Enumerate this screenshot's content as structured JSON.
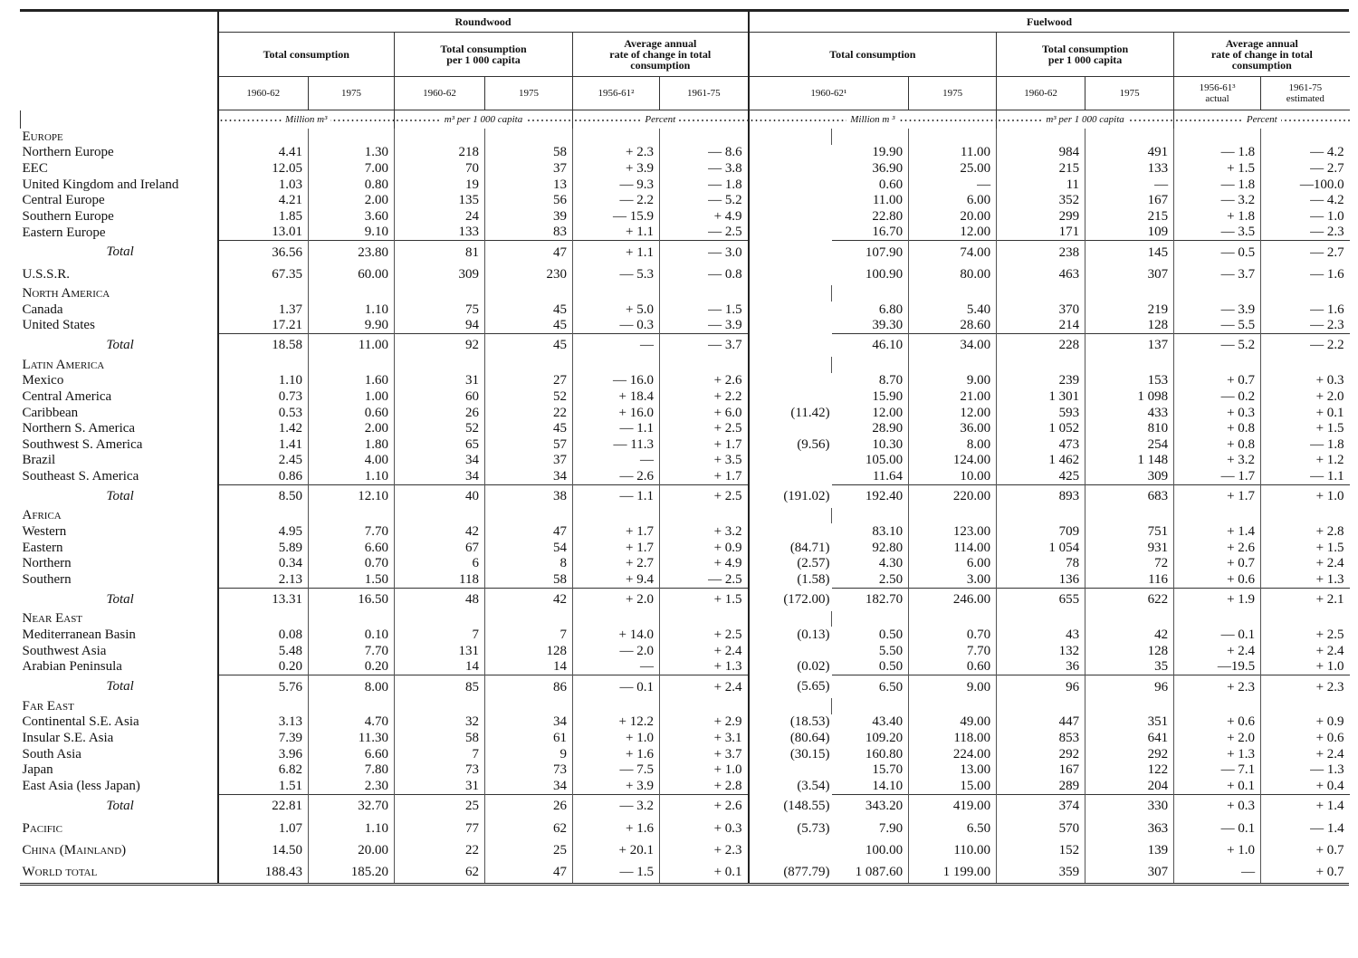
{
  "header": {
    "groups": [
      "Roundwood",
      "Fuelwood"
    ],
    "subgroups": [
      [
        "Total consumption"
      ],
      [
        "Total consumption",
        "per 1 000 capita"
      ],
      [
        "Average annual",
        "rate of change in total",
        "consumption"
      ],
      [
        "Total consumption"
      ],
      [
        "Total consumption",
        "per 1 000 capita"
      ],
      [
        "Average annual",
        "rate of change in total",
        "consumption"
      ]
    ],
    "years": [
      [
        "1960-62"
      ],
      [
        "1975"
      ],
      [
        "1960-62"
      ],
      [
        "1975"
      ],
      [
        "1956-61²"
      ],
      [
        "1961-75"
      ],
      [
        "1960-62¹"
      ],
      [
        "1975"
      ],
      [
        "1960-62"
      ],
      [
        "1975"
      ],
      [
        "1956-61³",
        "actual"
      ],
      [
        "1961-75",
        "estimated"
      ]
    ],
    "units": [
      "Million m³",
      "m³ per 1 000 capita",
      "Percent",
      "Million m ³",
      "m³ per 1 000 capita",
      "Percent"
    ]
  },
  "table": {
    "rows": [
      {
        "label": "Europe",
        "style": "small-caps"
      },
      {
        "label": "Northern Europe",
        "cells": [
          "4.41",
          "1.30",
          "218",
          "58",
          "+ 2.3",
          "— 8.6",
          null,
          "19.90",
          "11.00",
          "984",
          "491",
          "— 1.8",
          "— 4.2"
        ]
      },
      {
        "label": "EEC",
        "style": "small-caps",
        "cells": [
          "12.05",
          "7.00",
          "70",
          "37",
          "+ 3.9",
          "— 3.8",
          null,
          "36.90",
          "25.00",
          "215",
          "133",
          "+ 1.5",
          "— 2.7"
        ]
      },
      {
        "label": "United Kingdom and Ireland",
        "cells": [
          "1.03",
          "0.80",
          "19",
          "13",
          "— 9.3",
          "— 1.8",
          null,
          "0.60",
          "—",
          "11",
          "—",
          "— 1.8",
          "—100.0"
        ]
      },
      {
        "label": "Central Europe",
        "cells": [
          "4.21",
          "2.00",
          "135",
          "56",
          "— 2.2",
          "— 5.2",
          null,
          "11.00",
          "6.00",
          "352",
          "167",
          "— 3.2",
          "— 4.2"
        ]
      },
      {
        "label": "Southern Europe",
        "cells": [
          "1.85",
          "3.60",
          "24",
          "39",
          "— 15.9",
          "+ 4.9",
          null,
          "22.80",
          "20.00",
          "299",
          "215",
          "+ 1.8",
          "— 1.0"
        ]
      },
      {
        "label": "Eastern Europe",
        "cells": [
          "13.01",
          "9.10",
          "133",
          "83",
          "+ 1.1",
          "— 2.5",
          null,
          "16.70",
          "12.00",
          "171",
          "109",
          "— 3.5",
          "— 2.3"
        ]
      },
      {
        "label": "Total",
        "style": "total",
        "cells": [
          "36.56",
          "23.80",
          "81",
          "47",
          "+ 1.1",
          "— 3.0",
          null,
          "107.90",
          "74.00",
          "238",
          "145",
          "— 0.5",
          "— 2.7"
        ]
      },
      {
        "label": "U.S.S.R.",
        "style": "major",
        "cells": [
          "67.35",
          "60.00",
          "309",
          "230",
          "— 5.3",
          "— 0.8",
          null,
          "100.90",
          "80.00",
          "463",
          "307",
          "— 3.7",
          "— 1.6"
        ]
      },
      {
        "label": "North America",
        "style": "small-caps"
      },
      {
        "label": "Canada",
        "cells": [
          "1.37",
          "1.10",
          "75",
          "45",
          "+ 5.0",
          "— 1.5",
          null,
          "6.80",
          "5.40",
          "370",
          "219",
          "— 3.9",
          "— 1.6"
        ]
      },
      {
        "label": "United States",
        "cells": [
          "17.21",
          "9.90",
          "94",
          "45",
          "— 0.3",
          "— 3.9",
          null,
          "39.30",
          "28.60",
          "214",
          "128",
          "— 5.5",
          "— 2.3"
        ]
      },
      {
        "label": "Total",
        "style": "total",
        "cells": [
          "18.58",
          "11.00",
          "92",
          "45",
          "—",
          "— 3.7",
          null,
          "46.10",
          "34.00",
          "228",
          "137",
          "— 5.2",
          "— 2.2"
        ]
      },
      {
        "label": "Latin America",
        "style": "small-caps"
      },
      {
        "label": "Mexico",
        "cells": [
          "1.10",
          "1.60",
          "31",
          "27",
          "— 16.0",
          "+ 2.6",
          null,
          "8.70",
          "9.00",
          "239",
          "153",
          "+ 0.7",
          "+ 0.3"
        ]
      },
      {
        "label": "Central America",
        "cells": [
          "0.73",
          "1.00",
          "60",
          "52",
          "+ 18.4",
          "+ 2.2",
          null,
          "15.90",
          "21.00",
          "1 301",
          "1 098",
          "— 0.2",
          "+ 2.0"
        ]
      },
      {
        "label": "Caribbean",
        "cells": [
          "0.53",
          "0.60",
          "26",
          "22",
          "+ 16.0",
          "+ 6.0",
          "(11.42)",
          "12.00",
          "12.00",
          "593",
          "433",
          "+ 0.3",
          "+ 0.1"
        ]
      },
      {
        "label": "Northern S. America",
        "cells": [
          "1.42",
          "2.00",
          "52",
          "45",
          "— 1.1",
          "+ 2.5",
          null,
          "28.90",
          "36.00",
          "1 052",
          "810",
          "+ 0.8",
          "+ 1.5"
        ]
      },
      {
        "label": "Southwest S. America",
        "cells": [
          "1.41",
          "1.80",
          "65",
          "57",
          "— 11.3",
          "+ 1.7",
          "(9.56)",
          "10.30",
          "8.00",
          "473",
          "254",
          "+ 0.8",
          "— 1.8"
        ]
      },
      {
        "label": "Brazil",
        "cells": [
          "2.45",
          "4.00",
          "34",
          "37",
          "—",
          "+ 3.5",
          null,
          "105.00",
          "124.00",
          "1 462",
          "1 148",
          "+ 3.2",
          "+ 1.2"
        ]
      },
      {
        "label": "Southeast S. America",
        "cells": [
          "0.86",
          "1.10",
          "34",
          "34",
          "— 2.6",
          "+ 1.7",
          null,
          "11.64",
          "10.00",
          "425",
          "309",
          "— 1.7",
          "— 1.1"
        ]
      },
      {
        "label": "Total",
        "style": "total",
        "cells": [
          "8.50",
          "12.10",
          "40",
          "38",
          "— 1.1",
          "+ 2.5",
          "(191.02)",
          "192.40",
          "220.00",
          "893",
          "683",
          "+ 1.7",
          "+ 1.0"
        ]
      },
      {
        "label": "Africa",
        "style": "small-caps"
      },
      {
        "label": "Western",
        "cells": [
          "4.95",
          "7.70",
          "42",
          "47",
          "+ 1.7",
          "+ 3.2",
          null,
          "83.10",
          "123.00",
          "709",
          "751",
          "+ 1.4",
          "+ 2.8"
        ]
      },
      {
        "label": "Eastern",
        "cells": [
          "5.89",
          "6.60",
          "67",
          "54",
          "+ 1.7",
          "+ 0.9",
          "(84.71)",
          "92.80",
          "114.00",
          "1 054",
          "931",
          "+ 2.6",
          "+ 1.5"
        ]
      },
      {
        "label": "Northern",
        "cells": [
          "0.34",
          "0.70",
          "6",
          "8",
          "+ 2.7",
          "+ 4.9",
          "(2.57)",
          "4.30",
          "6.00",
          "78",
          "72",
          "+ 0.7",
          "+ 2.4"
        ]
      },
      {
        "label": "Southern",
        "cells": [
          "2.13",
          "1.50",
          "118",
          "58",
          "+ 9.4",
          "— 2.5",
          "(1.58)",
          "2.50",
          "3.00",
          "136",
          "116",
          "+ 0.6",
          "+ 1.3"
        ]
      },
      {
        "label": "Total",
        "style": "total",
        "cells": [
          "13.31",
          "16.50",
          "48",
          "42",
          "+ 2.0",
          "+ 1.5",
          "(172.00)",
          "182.70",
          "246.00",
          "655",
          "622",
          "+ 1.9",
          "+ 2.1"
        ]
      },
      {
        "label": "Near East",
        "style": "small-caps"
      },
      {
        "label": "Mediterranean Basin",
        "cells": [
          "0.08",
          "0.10",
          "7",
          "7",
          "+ 14.0",
          "+ 2.5",
          "(0.13)",
          "0.50",
          "0.70",
          "43",
          "42",
          "— 0.1",
          "+ 2.5"
        ]
      },
      {
        "label": "Southwest Asia",
        "cells": [
          "5.48",
          "7.70",
          "131",
          "128",
          "— 2.0",
          "+ 2.4",
          null,
          "5.50",
          "7.70",
          "132",
          "128",
          "+ 2.4",
          "+ 2.4"
        ]
      },
      {
        "label": "Arabian Peninsula",
        "cells": [
          "0.20",
          "0.20",
          "14",
          "14",
          "—",
          "+ 1.3",
          "(0.02)",
          "0.50",
          "0.60",
          "36",
          "35",
          "—19.5",
          "+ 1.0"
        ]
      },
      {
        "label": "Total",
        "style": "total",
        "cells": [
          "5.76",
          "8.00",
          "85",
          "86",
          "— 0.1",
          "+ 2.4",
          "(5.65)",
          "6.50",
          "9.00",
          "96",
          "96",
          "+ 2.3",
          "+ 2.3"
        ]
      },
      {
        "label": "Far East",
        "style": "small-caps"
      },
      {
        "label": "Continental S.E. Asia",
        "cells": [
          "3.13",
          "4.70",
          "32",
          "34",
          "+ 12.2",
          "+ 2.9",
          "(18.53)",
          "43.40",
          "49.00",
          "447",
          "351",
          "+ 0.6",
          "+ 0.9"
        ]
      },
      {
        "label": "Insular S.E. Asia",
        "cells": [
          "7.39",
          "11.30",
          "58",
          "61",
          "+ 1.0",
          "+ 3.1",
          "(80.64)",
          "109.20",
          "118.00",
          "853",
          "641",
          "+ 2.0",
          "+ 0.6"
        ]
      },
      {
        "label": "South Asia",
        "cells": [
          "3.96",
          "6.60",
          "7",
          "9",
          "+ 1.6",
          "+ 3.7",
          "(30.15)",
          "160.80",
          "224.00",
          "292",
          "292",
          "+ 1.3",
          "+ 2.4"
        ]
      },
      {
        "label": "Japan",
        "cells": [
          "6.82",
          "7.80",
          "73",
          "73",
          "— 7.5",
          "+ 1.0",
          null,
          "15.70",
          "13.00",
          "167",
          "122",
          "— 7.1",
          "— 1.3"
        ]
      },
      {
        "label": "East Asia (less Japan)",
        "cells": [
          "1.51",
          "2.30",
          "31",
          "34",
          "+ 3.9",
          "+ 2.8",
          "(3.54)",
          "14.10",
          "15.00",
          "289",
          "204",
          "+ 0.1",
          "+ 0.4"
        ]
      },
      {
        "label": "Total",
        "style": "total",
        "cells": [
          "22.81",
          "32.70",
          "25",
          "26",
          "— 3.2",
          "+ 2.6",
          "(148.55)",
          "343.20",
          "419.00",
          "374",
          "330",
          "+ 0.3",
          "+ 1.4"
        ]
      },
      {
        "label": "Pacific",
        "style": "major small-caps",
        "cells": [
          "1.07",
          "1.10",
          "77",
          "62",
          "+ 1.6",
          "+ 0.3",
          "(5.73)",
          "7.90",
          "6.50",
          "570",
          "363",
          "— 0.1",
          "— 1.4"
        ]
      },
      {
        "label": "China (Mainland)",
        "style": "major small-caps",
        "cells": [
          "14.50",
          "20.00",
          "22",
          "25",
          "+ 20.1",
          "+ 2.3",
          null,
          "100.00",
          "110.00",
          "152",
          "139",
          "+ 1.0",
          "+ 0.7"
        ]
      },
      {
        "label": "World total",
        "style": "major small-caps",
        "cells": [
          "188.43",
          "185.20",
          "62",
          "47",
          "— 1.5",
          "+ 0.1",
          "(877.79)",
          "1 087.60",
          "1 199.00",
          "359",
          "307",
          "—",
          "+ 0.7"
        ]
      }
    ]
  }
}
